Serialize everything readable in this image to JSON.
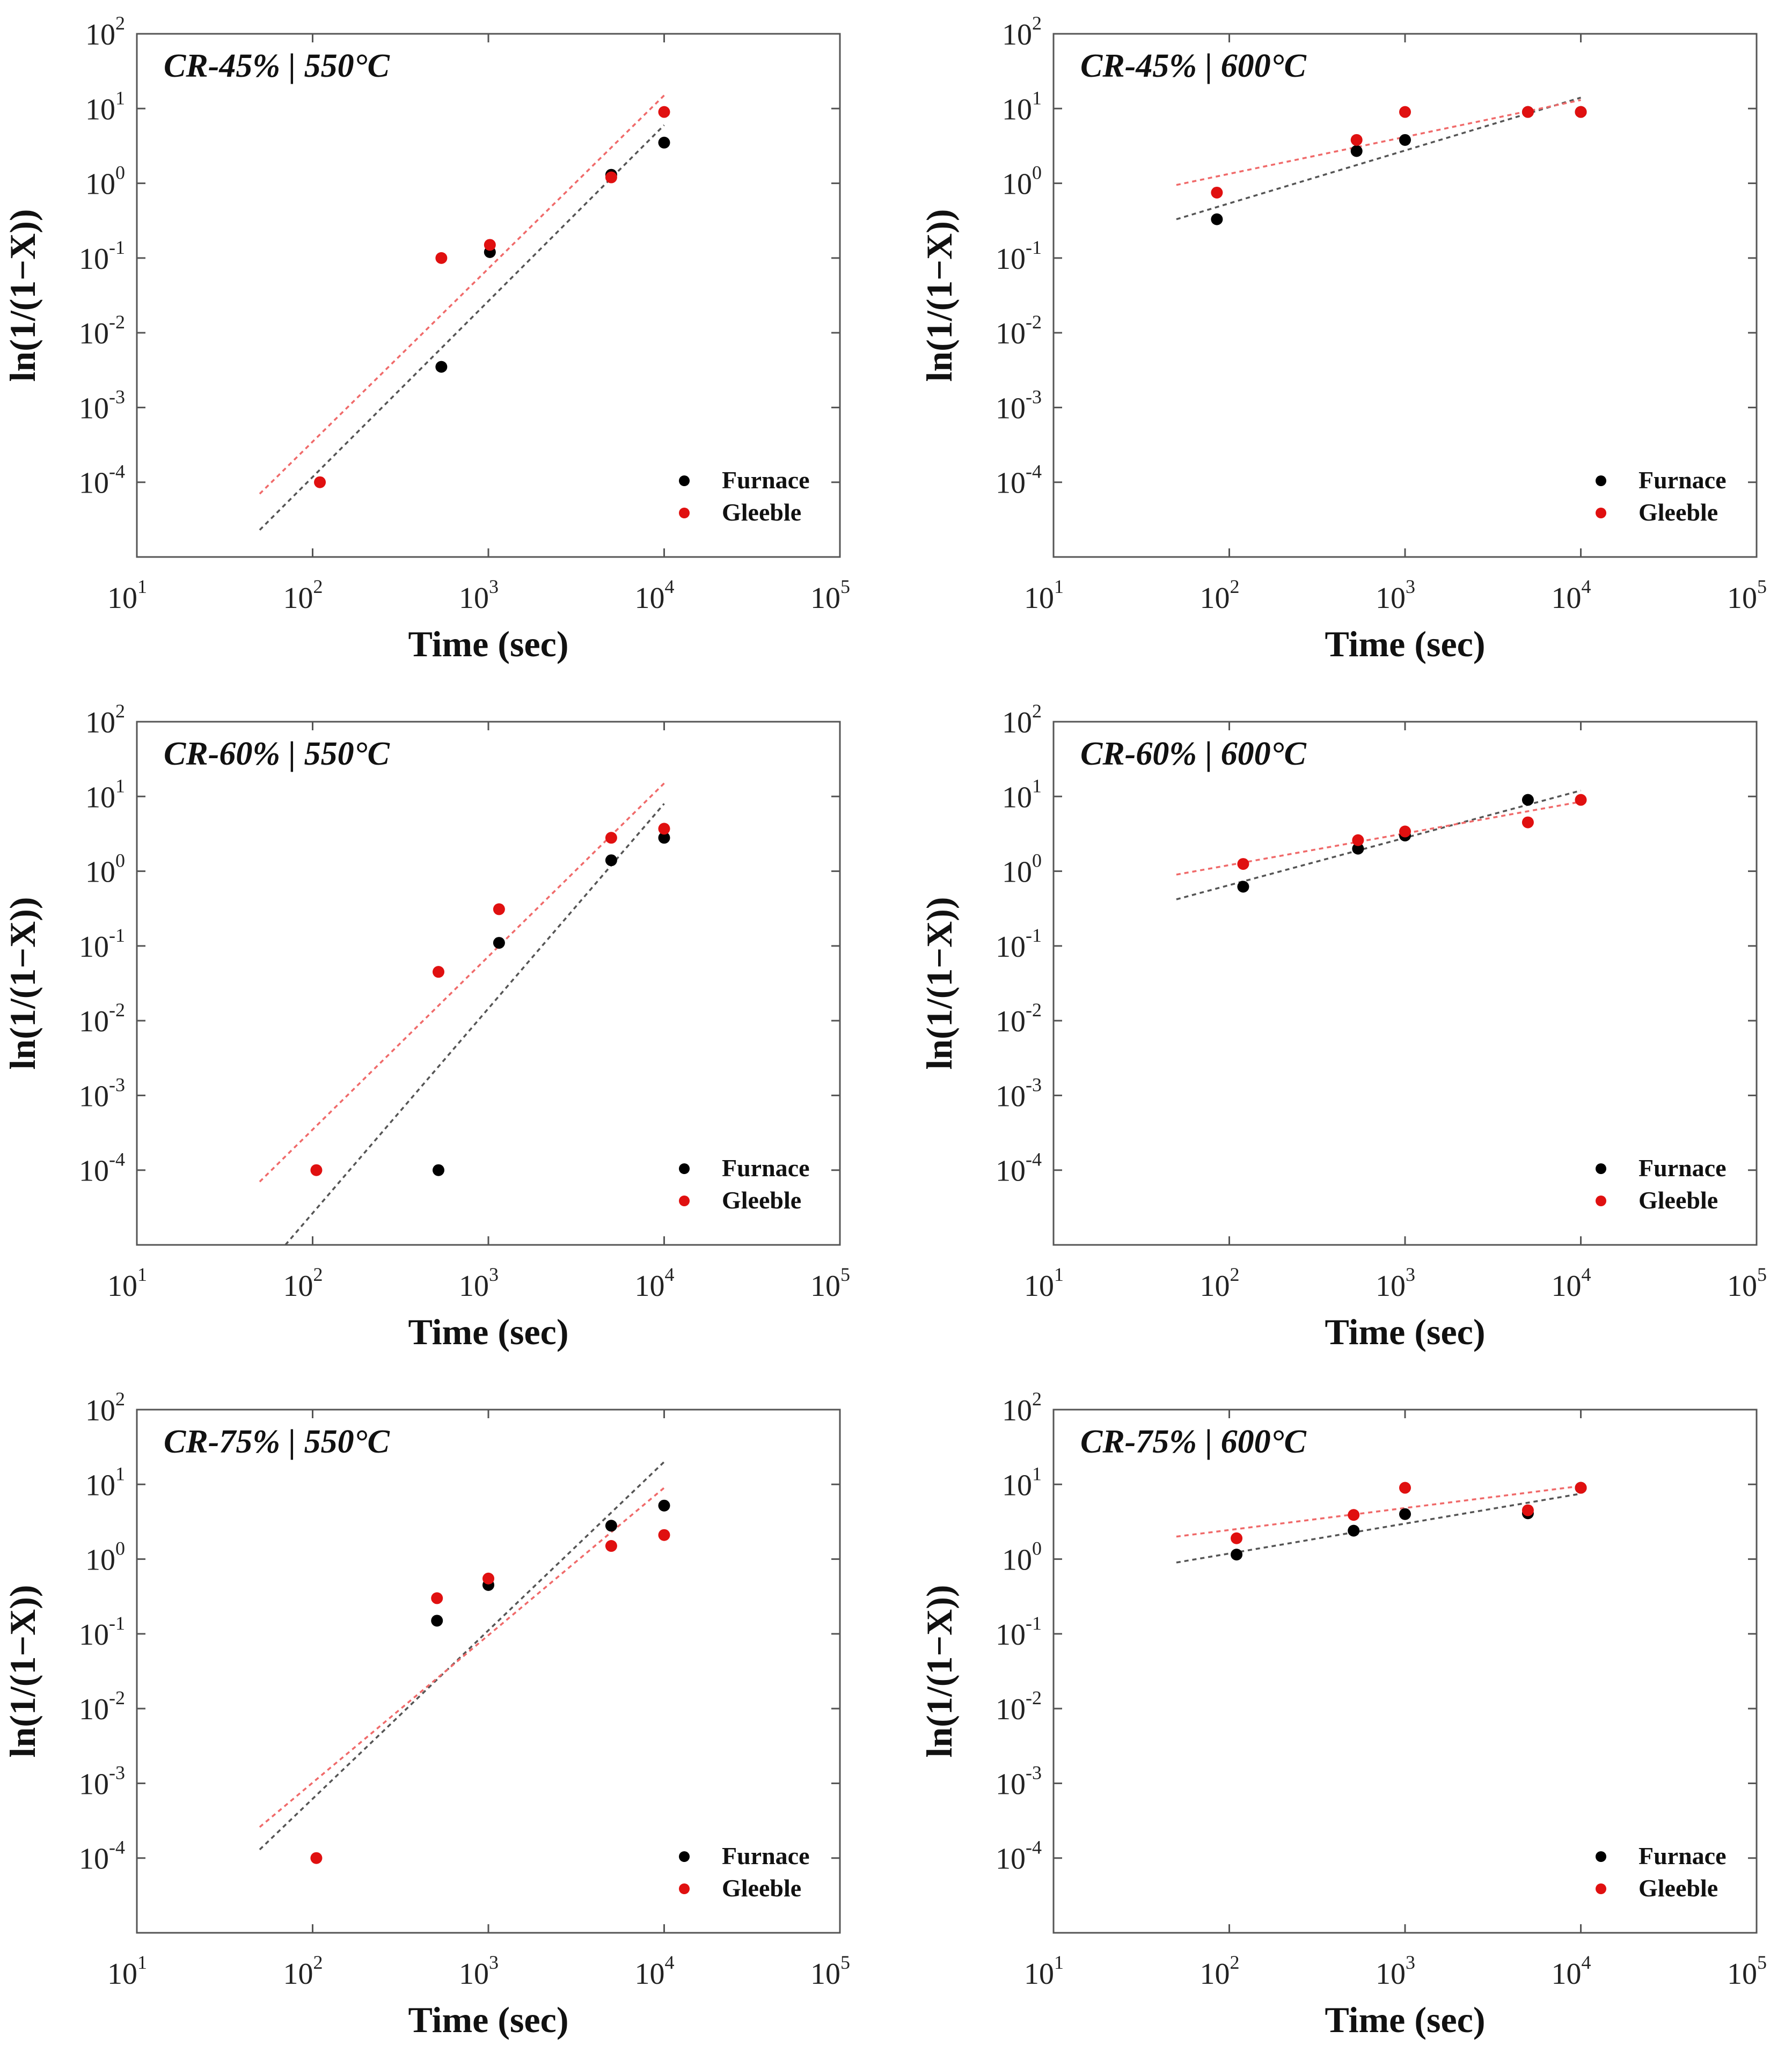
{
  "colors": {
    "furnace": "#000000",
    "gleeble": "#e01010",
    "furnace_fit": "#555555",
    "gleeble_fit": "#f06a6a"
  },
  "chart_data": [
    {
      "type": "scatter",
      "title": "CR-45% | 550°C",
      "xlabel": "Time (sec)",
      "ylabel": "ln(1/(1−X))",
      "xscale": "log",
      "yscale": "log",
      "xlim": [
        10,
        100000
      ],
      "ylim": [
        1e-05,
        100
      ],
      "xticks": [
        1,
        2,
        3,
        4,
        5
      ],
      "yticks": [
        -4,
        -3,
        -2,
        -1,
        0,
        1,
        2
      ],
      "legend": [
        "Furnace",
        "Gleeble"
      ],
      "legend_position": "bottom-right",
      "series": [
        {
          "name": "Furnace",
          "x": [
            540,
            1020,
            5000,
            10000
          ],
          "y": [
            0.0035,
            0.12,
            1.3,
            3.5
          ],
          "fit": {
            "x": [
              50,
              10000
            ],
            "y": [
              2.3e-05,
              6.0
            ]
          }
        },
        {
          "name": "Gleeble",
          "x": [
            110,
            540,
            1020,
            5000,
            10000
          ],
          "y": [
            0.0001,
            0.1,
            0.15,
            1.2,
            9.0
          ],
          "fit": {
            "x": [
              50,
              10000
            ],
            "y": [
              7e-05,
              15.0
            ]
          }
        }
      ]
    },
    {
      "type": "scatter",
      "title": "CR-45% | 600°C",
      "xlabel": "Time (sec)",
      "ylabel": "ln(1/(1−X))",
      "xscale": "log",
      "yscale": "log",
      "xlim": [
        10,
        100000
      ],
      "ylim": [
        1e-05,
        100
      ],
      "xticks": [
        1,
        2,
        3,
        4,
        5
      ],
      "yticks": [
        -4,
        -3,
        -2,
        -1,
        0,
        1,
        2
      ],
      "legend": [
        "Furnace",
        "Gleeble"
      ],
      "legend_position": "bottom-right",
      "series": [
        {
          "name": "Furnace",
          "x": [
            85,
            530,
            1000,
            5000,
            10000
          ],
          "y": [
            0.33,
            2.7,
            3.8,
            9.0,
            9.0
          ],
          "fit": {
            "x": [
              50,
              10000
            ],
            "y": [
              0.33,
              14.0
            ]
          }
        },
        {
          "name": "Gleeble",
          "x": [
            85,
            530,
            1000,
            5000,
            10000
          ],
          "y": [
            0.75,
            3.8,
            9.0,
            9.0,
            9.0
          ],
          "fit": {
            "x": [
              50,
              10000
            ],
            "y": [
              0.95,
              13.0
            ]
          }
        }
      ]
    },
    {
      "type": "scatter",
      "title": "CR-60% | 550°C",
      "xlabel": "Time (sec)",
      "ylabel": "ln(1/(1−X))",
      "xscale": "log",
      "yscale": "log",
      "xlim": [
        10,
        100000
      ],
      "ylim": [
        1e-05,
        100
      ],
      "xticks": [
        1,
        2,
        3,
        4,
        5
      ],
      "yticks": [
        -4,
        -3,
        -2,
        -1,
        0,
        1,
        2
      ],
      "legend": [
        "Furnace",
        "Gleeble"
      ],
      "legend_position": "bottom-right",
      "series": [
        {
          "name": "Furnace",
          "x": [
            520,
            1150,
            5000,
            10000
          ],
          "y": [
            0.0001,
            0.11,
            1.4,
            2.8
          ],
          "fit": {
            "x": [
              70,
              10000
            ],
            "y": [
              1e-05,
              8.0
            ]
          }
        },
        {
          "name": "Gleeble",
          "x": [
            105,
            520,
            1150,
            5000,
            10000
          ],
          "y": [
            0.0001,
            0.045,
            0.31,
            2.8,
            3.7
          ],
          "fit": {
            "x": [
              50,
              10000
            ],
            "y": [
              7e-05,
              15.0
            ]
          }
        }
      ]
    },
    {
      "type": "scatter",
      "title": "CR-60% | 600°C",
      "xlabel": "Time (sec)",
      "ylabel": "ln(1/(1−X))",
      "xscale": "log",
      "yscale": "log",
      "xlim": [
        10,
        100000
      ],
      "ylim": [
        1e-05,
        100
      ],
      "xticks": [
        1,
        2,
        3,
        4,
        5
      ],
      "yticks": [
        -4,
        -3,
        -2,
        -1,
        0,
        1,
        2
      ],
      "legend": [
        "Furnace",
        "Gleeble"
      ],
      "legend_position": "bottom-right",
      "series": [
        {
          "name": "Furnace",
          "x": [
            120,
            540,
            1000,
            5000
          ],
          "y": [
            0.62,
            2.0,
            3.0,
            9.0
          ],
          "fit": {
            "x": [
              50,
              10000
            ],
            "y": [
              0.42,
              12.0
            ]
          }
        },
        {
          "name": "Gleeble",
          "x": [
            120,
            540,
            1000,
            5000,
            10000
          ],
          "y": [
            1.25,
            2.6,
            3.4,
            4.5,
            9.0
          ],
          "fit": {
            "x": [
              50,
              10000
            ],
            "y": [
              0.9,
              8.5
            ]
          }
        }
      ]
    },
    {
      "type": "scatter",
      "title": "CR-75% | 550°C",
      "xlabel": "Time (sec)",
      "ylabel": "ln(1/(1−X))",
      "xscale": "log",
      "yscale": "log",
      "xlim": [
        10,
        100000
      ],
      "ylim": [
        1e-05,
        100
      ],
      "xticks": [
        1,
        2,
        3,
        4,
        5
      ],
      "yticks": [
        -4,
        -3,
        -2,
        -1,
        0,
        1,
        2
      ],
      "legend": [
        "Furnace",
        "Gleeble"
      ],
      "legend_position": "bottom-right",
      "series": [
        {
          "name": "Furnace",
          "x": [
            510,
            1000,
            5000,
            10000
          ],
          "y": [
            0.15,
            0.45,
            2.8,
            5.2
          ],
          "fit": {
            "x": [
              50,
              10000
            ],
            "y": [
              0.00013,
              20.0
            ]
          }
        },
        {
          "name": "Gleeble",
          "x": [
            105,
            510,
            1000,
            5000,
            10000
          ],
          "y": [
            0.0001,
            0.3,
            0.55,
            1.5,
            2.1
          ],
          "fit": {
            "x": [
              50,
              10000
            ],
            "y": [
              0.00026,
              9.0
            ]
          }
        }
      ]
    },
    {
      "type": "scatter",
      "title": "CR-75% | 600°C",
      "xlabel": "Time (sec)",
      "ylabel": "ln(1/(1−X))",
      "xscale": "log",
      "yscale": "log",
      "xlim": [
        10,
        100000
      ],
      "ylim": [
        1e-05,
        100
      ],
      "xticks": [
        1,
        2,
        3,
        4,
        5
      ],
      "yticks": [
        -4,
        -3,
        -2,
        -1,
        0,
        1,
        2
      ],
      "legend": [
        "Furnace",
        "Gleeble"
      ],
      "legend_position": "bottom-right",
      "series": [
        {
          "name": "Furnace",
          "x": [
            110,
            510,
            1000,
            5000,
            10000
          ],
          "y": [
            1.15,
            2.4,
            4.0,
            4.1,
            9.0
          ],
          "fit": {
            "x": [
              50,
              10000
            ],
            "y": [
              0.9,
              7.5
            ]
          }
        },
        {
          "name": "Gleeble",
          "x": [
            110,
            510,
            1000,
            5000,
            10000
          ],
          "y": [
            1.9,
            3.9,
            9.0,
            4.5,
            9.0
          ],
          "fit": {
            "x": [
              50,
              10000
            ],
            "y": [
              2.0,
              9.5
            ]
          }
        }
      ]
    }
  ]
}
